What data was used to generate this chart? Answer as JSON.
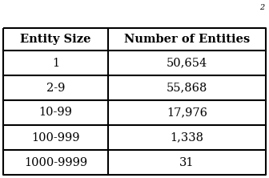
{
  "headers": [
    "Entity Size",
    "Number of Entities"
  ],
  "rows": [
    [
      "1",
      "50,654"
    ],
    [
      "2-9",
      "55,868"
    ],
    [
      "10-99",
      "17,976"
    ],
    [
      "100-999",
      "1,338"
    ],
    [
      "1000-9999",
      "31"
    ]
  ],
  "background_color": "#ffffff",
  "header_fontsize": 10.5,
  "cell_fontsize": 10.5,
  "top_note": "2",
  "fig_width": 3.36,
  "fig_height": 2.22,
  "dpi": 100
}
